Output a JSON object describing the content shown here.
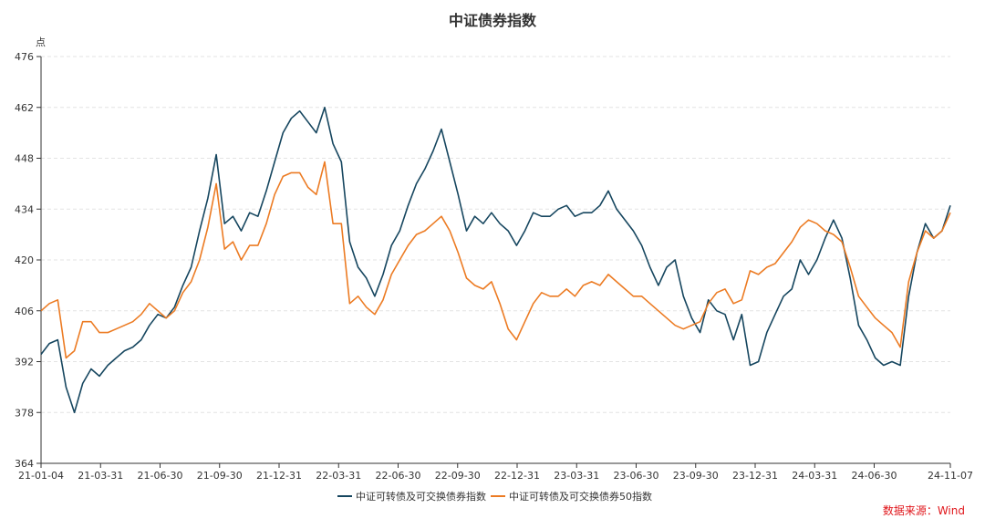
{
  "chart_data": {
    "type": "line",
    "title": "中证债券指数",
    "ylabel": "点",
    "ylim": [
      364,
      476
    ],
    "yticks": [
      364,
      378,
      392,
      406,
      420,
      434,
      448,
      462,
      476
    ],
    "xticks": [
      "21-01-04",
      "21-03-31",
      "21-06-30",
      "21-09-30",
      "21-12-31",
      "22-03-31",
      "22-06-30",
      "22-09-30",
      "22-12-31",
      "23-03-31",
      "23-06-30",
      "23-09-30",
      "23-12-31",
      "24-03-31",
      "24-06-30",
      "24-11-07"
    ],
    "series": [
      {
        "name": "中证可转债及可交换债券指数",
        "color": "#16465f",
        "values": [
          394,
          397,
          398,
          385,
          378,
          386,
          390,
          388,
          391,
          393,
          395,
          396,
          398,
          402,
          405,
          404,
          407,
          413,
          418,
          428,
          437,
          449,
          430,
          432,
          428,
          433,
          432,
          439,
          447,
          455,
          459,
          461,
          458,
          455,
          462,
          452,
          447,
          425,
          418,
          415,
          410,
          416,
          424,
          428,
          435,
          441,
          445,
          450,
          456,
          447,
          438,
          428,
          432,
          430,
          433,
          430,
          428,
          424,
          428,
          433,
          432,
          432,
          434,
          435,
          432,
          433,
          433,
          435,
          439,
          434,
          431,
          428,
          424,
          418,
          413,
          418,
          420,
          410,
          404,
          400,
          409,
          406,
          405,
          398,
          405,
          391,
          392,
          400,
          405,
          410,
          412,
          420,
          416,
          420,
          426,
          431,
          426,
          415,
          402,
          398,
          393,
          391,
          392,
          391,
          410,
          422,
          430,
          426,
          428,
          435
        ]
      },
      {
        "name": "中证可转债及可交换债券50指数",
        "color": "#ec7b23",
        "values": [
          406,
          408,
          409,
          393,
          395,
          403,
          403,
          400,
          400,
          401,
          402,
          403,
          405,
          408,
          406,
          404,
          406,
          411,
          414,
          420,
          429,
          441,
          423,
          425,
          420,
          424,
          424,
          430,
          438,
          443,
          444,
          444,
          440,
          438,
          447,
          430,
          430,
          408,
          410,
          407,
          405,
          409,
          416,
          420,
          424,
          427,
          428,
          430,
          432,
          428,
          422,
          415,
          413,
          412,
          414,
          408,
          401,
          398,
          403,
          408,
          411,
          410,
          410,
          412,
          410,
          413,
          414,
          413,
          416,
          414,
          412,
          410,
          410,
          408,
          406,
          404,
          402,
          401,
          402,
          403,
          408,
          411,
          412,
          408,
          409,
          417,
          416,
          418,
          419,
          422,
          425,
          429,
          431,
          430,
          428,
          427,
          425,
          418,
          410,
          407,
          404,
          402,
          400,
          396,
          414,
          422,
          428,
          426,
          428,
          433
        ]
      }
    ],
    "legend": "bottom-center"
  },
  "source": "数据来源：Wind"
}
